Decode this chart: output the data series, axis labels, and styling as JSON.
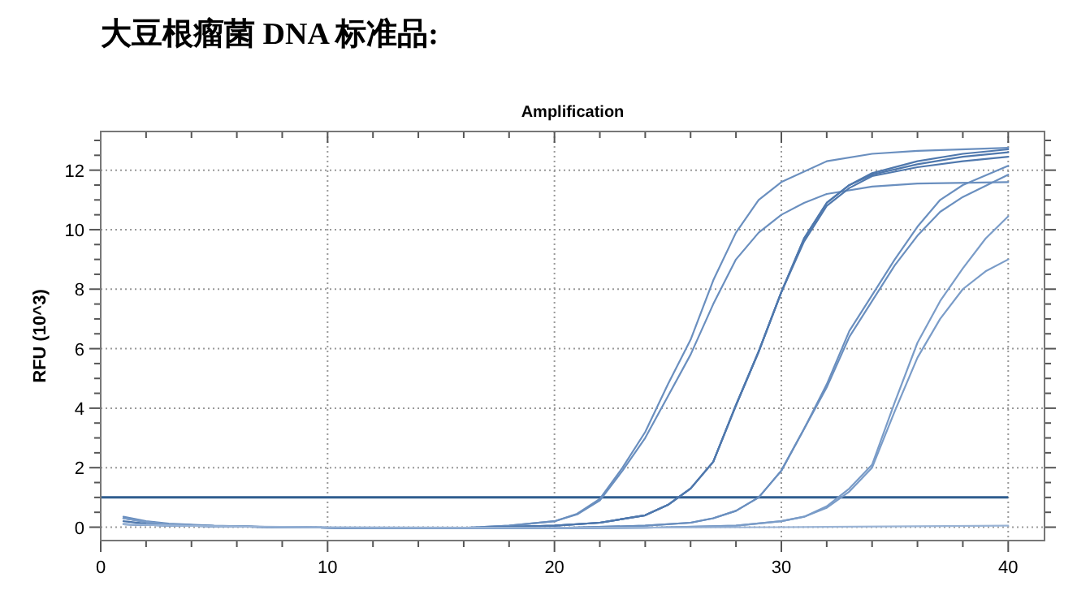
{
  "chart_data": {
    "type": "line",
    "title": "大豆根瘤菌 DNA 标准品:",
    "subtitle": "Amplification",
    "ylabel": "RFU (10^3)",
    "xlim": [
      0,
      41.6
    ],
    "ylim": [
      -0.45,
      13.3
    ],
    "xticks": [
      0,
      {
        "value": 2,
        "label": null
      },
      {
        "value": 4,
        "label": null
      },
      {
        "value": 6,
        "label": null
      },
      {
        "value": 8,
        "label": null
      },
      10,
      {
        "value": 12,
        "label": null
      },
      {
        "value": 14,
        "label": null
      },
      {
        "value": 16,
        "label": null
      },
      {
        "value": 18,
        "label": null
      },
      20,
      {
        "value": 22,
        "label": null
      },
      {
        "value": 24,
        "label": null
      },
      {
        "value": 26,
        "label": null
      },
      {
        "value": 28,
        "label": null
      },
      30,
      {
        "value": 32,
        "label": null
      },
      {
        "value": 34,
        "label": null
      },
      {
        "value": 36,
        "label": null
      },
      {
        "value": 38,
        "label": null
      },
      40
    ],
    "yticks": [
      0,
      {
        "value": 0.5,
        "label": null
      },
      {
        "value": 1,
        "label": null
      },
      {
        "value": 1.5,
        "label": null
      },
      2,
      {
        "value": 2.5,
        "label": null
      },
      {
        "value": 3,
        "label": null
      },
      {
        "value": 3.5,
        "label": null
      },
      4,
      {
        "value": 4.5,
        "label": null
      },
      {
        "value": 5,
        "label": null
      },
      {
        "value": 5.5,
        "label": null
      },
      6,
      {
        "value": 6.5,
        "label": null
      },
      {
        "value": 7,
        "label": null
      },
      {
        "value": 7.5,
        "label": null
      },
      8,
      {
        "value": 8.5,
        "label": null
      },
      {
        "value": 9,
        "label": null
      },
      {
        "value": 9.5,
        "label": null
      },
      10,
      {
        "value": 10.5,
        "label": null
      },
      {
        "value": 11,
        "label": null
      },
      {
        "value": 11.5,
        "label": null
      },
      12,
      {
        "value": 12.5,
        "label": null
      },
      {
        "value": 13,
        "label": null
      }
    ],
    "grid": true,
    "marker": "none",
    "line_style": "solid",
    "ref_lines": [
      {
        "axis": "y",
        "value": 1,
        "color": "#2f5d8f"
      }
    ],
    "series": [
      {
        "color": "#6a8fbf",
        "x": [
          1,
          2,
          3,
          5,
          8,
          12,
          16,
          18,
          20,
          21,
          22,
          23,
          24,
          25,
          26,
          27,
          28,
          29,
          30,
          32,
          34,
          36,
          40
        ],
        "values": [
          0.35,
          0.2,
          0.12,
          0.05,
          0,
          -0.03,
          -0.02,
          0.05,
          0.2,
          0.45,
          0.95,
          2,
          3.2,
          4.8,
          6.3,
          8.3,
          9.9,
          11,
          11.6,
          12.3,
          12.55,
          12.65,
          12.75
        ]
      },
      {
        "color": "#6a8fbf",
        "x": [
          1,
          2,
          3,
          5,
          8,
          12,
          16,
          18,
          20,
          21,
          22,
          23,
          24,
          25,
          26,
          27,
          28,
          29,
          30,
          31,
          32,
          34,
          36,
          40
        ],
        "values": [
          0.1,
          0.08,
          0.06,
          0.03,
          0,
          -0.03,
          -0.02,
          0.05,
          0.2,
          0.43,
          0.9,
          1.9,
          3,
          4.4,
          5.8,
          7.5,
          9,
          9.9,
          10.5,
          10.9,
          11.2,
          11.45,
          11.55,
          11.6
        ]
      },
      {
        "color": "#4f78ad",
        "x": [
          1,
          2,
          3,
          5,
          8,
          12,
          16,
          20,
          22,
          24,
          25,
          26,
          27,
          28,
          29,
          30,
          31,
          32,
          33,
          34,
          36,
          38,
          40
        ],
        "values": [
          0.3,
          0.18,
          0.1,
          0.04,
          0,
          -0.03,
          -0.03,
          0.05,
          0.15,
          0.4,
          0.75,
          1.3,
          2.2,
          4.1,
          5.9,
          7.9,
          9.7,
          10.9,
          11.5,
          11.9,
          12.3,
          12.55,
          12.7
        ]
      },
      {
        "color": "#4f78ad",
        "x": [
          1,
          2,
          3,
          5,
          8,
          12,
          16,
          20,
          22,
          24,
          25,
          26,
          27,
          28,
          29,
          30,
          31,
          32,
          33,
          34,
          36,
          38,
          40
        ],
        "values": [
          0.1,
          0.08,
          0.06,
          0.03,
          0,
          -0.03,
          -0.03,
          0.05,
          0.15,
          0.4,
          0.75,
          1.3,
          2.2,
          4.1,
          5.9,
          7.9,
          9.7,
          10.9,
          11.5,
          11.85,
          12.2,
          12.45,
          12.6
        ]
      },
      {
        "color": "#4f78ad",
        "x": [
          1,
          2,
          3,
          5,
          8,
          12,
          16,
          20,
          22,
          24,
          25,
          26,
          27,
          28,
          29,
          30,
          31,
          32,
          33,
          34,
          36,
          38,
          40
        ],
        "values": [
          0.2,
          0.12,
          0.08,
          0.03,
          0,
          -0.03,
          -0.03,
          0.05,
          0.15,
          0.4,
          0.75,
          1.3,
          2.2,
          4.1,
          5.9,
          7.9,
          9.6,
          10.8,
          11.4,
          11.8,
          12.1,
          12.3,
          12.45
        ]
      },
      {
        "color": "#6a8fbf",
        "x": [
          1,
          2,
          3,
          5,
          8,
          12,
          16,
          20,
          24,
          26,
          27,
          28,
          29,
          30,
          31,
          32,
          33,
          34,
          35,
          36,
          37,
          38,
          40
        ],
        "values": [
          0.3,
          0.18,
          0.1,
          0.04,
          0,
          -0.03,
          -0.04,
          -0.03,
          0.05,
          0.15,
          0.3,
          0.55,
          1,
          1.9,
          3.3,
          4.8,
          6.6,
          7.8,
          9,
          10.1,
          11,
          11.5,
          12.15
        ]
      },
      {
        "color": "#6a8fbf",
        "x": [
          1,
          2,
          3,
          5,
          8,
          12,
          16,
          20,
          24,
          26,
          27,
          28,
          29,
          30,
          31,
          32,
          33,
          34,
          35,
          36,
          37,
          38,
          40
        ],
        "values": [
          0.1,
          0.08,
          0.06,
          0.03,
          0,
          -0.03,
          -0.04,
          -0.03,
          0.05,
          0.15,
          0.3,
          0.55,
          1,
          1.9,
          3.3,
          4.7,
          6.4,
          7.6,
          8.8,
          9.8,
          10.6,
          11.1,
          11.85
        ]
      },
      {
        "color": "#7a9cc8",
        "x": [
          1,
          2,
          3,
          5,
          8,
          12,
          16,
          20,
          24,
          28,
          30,
          31,
          32,
          33,
          34,
          35,
          36,
          37,
          38,
          39,
          40
        ],
        "values": [
          0.3,
          0.18,
          0.1,
          0.04,
          0,
          -0.03,
          -0.04,
          -0.04,
          -0.02,
          0.05,
          0.2,
          0.35,
          0.7,
          1.3,
          2.1,
          4.2,
          6.2,
          7.6,
          8.7,
          9.7,
          10.45
        ]
      },
      {
        "color": "#7a9cc8",
        "x": [
          1,
          2,
          3,
          5,
          8,
          12,
          16,
          20,
          24,
          28,
          30,
          31,
          32,
          33,
          34,
          35,
          36,
          37,
          38,
          39,
          40
        ],
        "values": [
          0.1,
          0.08,
          0.06,
          0.03,
          0,
          -0.03,
          -0.04,
          -0.04,
          -0.02,
          0.05,
          0.2,
          0.35,
          0.65,
          1.2,
          2,
          3.9,
          5.7,
          7,
          8,
          8.6,
          9
        ]
      },
      {
        "color": "#9ab4d6",
        "x": [
          1,
          3,
          5,
          10,
          20,
          30,
          40
        ],
        "values": [
          0.1,
          0.06,
          0.03,
          0,
          -0.02,
          0,
          0.05
        ]
      }
    ]
  }
}
